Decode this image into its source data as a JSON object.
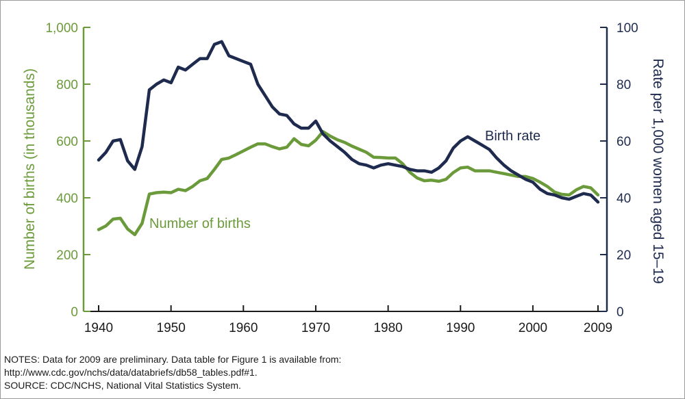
{
  "chart_data": {
    "type": "line",
    "title": "",
    "xlabel": "",
    "x_ticks": [
      "1940",
      "1950",
      "1960",
      "1970",
      "1980",
      "1990",
      "2000",
      "2009"
    ],
    "xlim": [
      1940,
      2009
    ],
    "left_axis": {
      "label": "Number of births (in thousands)",
      "ylim": [
        0,
        1000
      ],
      "ticks": [
        "0",
        "200",
        "400",
        "600",
        "800",
        "1,000"
      ],
      "color": "#6b9a3a"
    },
    "right_axis": {
      "label": "Rate per 1,000 women aged 15–19",
      "ylim": [
        0,
        100
      ],
      "ticks": [
        "0",
        "20",
        "40",
        "60",
        "80",
        "100"
      ],
      "color": "#1e2a4e"
    },
    "series": [
      {
        "name": "Number of births",
        "axis": "left",
        "color": "#6b9a3a",
        "x": [
          1940,
          1941,
          1942,
          1943,
          1944,
          1945,
          1946,
          1947,
          1948,
          1949,
          1950,
          1951,
          1952,
          1953,
          1954,
          1955,
          1956,
          1957,
          1958,
          1959,
          1960,
          1961,
          1962,
          1963,
          1964,
          1965,
          1966,
          1967,
          1968,
          1969,
          1970,
          1971,
          1972,
          1973,
          1974,
          1975,
          1976,
          1977,
          1978,
          1979,
          1980,
          1981,
          1982,
          1983,
          1984,
          1985,
          1986,
          1987,
          1988,
          1989,
          1990,
          1991,
          1992,
          1993,
          1994,
          1995,
          1996,
          1997,
          1998,
          1999,
          2000,
          2001,
          2002,
          2003,
          2004,
          2005,
          2006,
          2007,
          2008,
          2009
        ],
        "values": [
          288,
          301,
          325,
          328,
          290,
          270,
          310,
          413,
          418,
          420,
          418,
          430,
          425,
          440,
          460,
          468,
          500,
          535,
          540,
          552,
          565,
          578,
          590,
          590,
          580,
          572,
          578,
          608,
          588,
          583,
          603,
          633,
          617,
          604,
          595,
          582,
          571,
          560,
          543,
          542,
          540,
          540,
          520,
          490,
          470,
          460,
          462,
          458,
          465,
          489,
          505,
          508,
          495,
          495,
          495,
          490,
          485,
          480,
          475,
          475,
          468,
          455,
          440,
          420,
          412,
          410,
          428,
          440,
          435,
          410
        ]
      },
      {
        "name": "Birth rate",
        "axis": "right",
        "color": "#1e2a4e",
        "x": [
          1940,
          1941,
          1942,
          1943,
          1944,
          1945,
          1946,
          1947,
          1948,
          1949,
          1950,
          1951,
          1952,
          1953,
          1954,
          1955,
          1956,
          1957,
          1958,
          1959,
          1960,
          1961,
          1962,
          1963,
          1964,
          1965,
          1966,
          1967,
          1968,
          1969,
          1970,
          1971,
          1972,
          1973,
          1974,
          1975,
          1976,
          1977,
          1978,
          1979,
          1980,
          1981,
          1982,
          1983,
          1984,
          1985,
          1986,
          1987,
          1988,
          1989,
          1990,
          1991,
          1992,
          1993,
          1994,
          1995,
          1996,
          1997,
          1998,
          1999,
          2000,
          2001,
          2002,
          2003,
          2004,
          2005,
          2006,
          2007,
          2008,
          2009
        ],
        "values": [
          53.3,
          56.0,
          60.0,
          60.5,
          53.0,
          50.0,
          58.0,
          78.0,
          80.0,
          81.5,
          80.5,
          86.0,
          85.0,
          87.0,
          89.0,
          89.0,
          94.0,
          95.0,
          90.0,
          89.0,
          88.0,
          87.0,
          80.0,
          76.0,
          72.0,
          69.5,
          69.0,
          66.0,
          64.5,
          64.5,
          67.0,
          62.5,
          60.0,
          58.0,
          56.0,
          53.5,
          52.0,
          51.5,
          50.5,
          51.5,
          52.0,
          51.5,
          51.0,
          50.0,
          49.5,
          49.5,
          49.0,
          50.5,
          53.0,
          57.5,
          60.0,
          61.5,
          60.0,
          58.5,
          57.0,
          54.0,
          51.5,
          49.5,
          48.0,
          46.5,
          45.5,
          43.0,
          41.5,
          41.0,
          40.0,
          39.5,
          40.5,
          41.5,
          41.0,
          38.5
        ]
      }
    ],
    "annotations": [
      "Number of births",
      "Birth rate"
    ]
  },
  "notes": {
    "line1": "NOTES: Data for 2009 are preliminary. Data table for Figure 1 is available from:",
    "line2": "http://www.cdc.gov/nchs/data/databriefs/db58_tables.pdf#1.",
    "line3": "SOURCE: CDC/NCHS, National Vital Statistics System."
  }
}
